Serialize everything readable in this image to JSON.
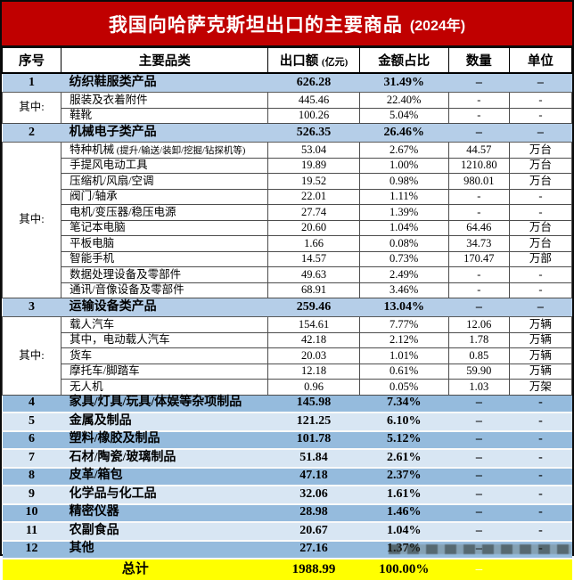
{
  "title": {
    "text": "我国向哈萨克斯坦出口的主要商品",
    "year": "(2024年)"
  },
  "colors": {
    "banner_bg": "#c00000",
    "banner_text": "#ffffff",
    "category_row_bg": "#b5cee8",
    "alt_row_dark_bg": "#95bbdd",
    "alt_row_light_bg": "#d8e6f3",
    "total_row_bg": "#ffff00",
    "grid_line": "#4d4d4d"
  },
  "side_label": "其中:",
  "chart_data": {
    "type": "table",
    "title": "我国向哈萨克斯坦出口的主要商品 (2024年)",
    "columns": {
      "no": "序号",
      "category": "主要品类",
      "export": "出口额",
      "export_note": "(亿元)",
      "share": "金额占比",
      "qty": "数量",
      "unit": "单位"
    },
    "rows": [
      {
        "kind": "cat",
        "no": "1",
        "category": "纺织鞋服类产品",
        "export": "626.28",
        "share": "31.49%",
        "qty": "–",
        "unit": "–"
      },
      {
        "kind": "sub",
        "side": {
          "label": "其中:",
          "span": 2
        },
        "category": "服装及衣着附件",
        "export": "445.46",
        "share": "22.40%",
        "qty": "-",
        "unit": "-"
      },
      {
        "kind": "sub",
        "category": "鞋靴",
        "export": "100.26",
        "share": "5.04%",
        "qty": "-",
        "unit": "-"
      },
      {
        "kind": "cat",
        "no": "2",
        "category": "机械电子类产品",
        "export": "526.35",
        "share": "26.46%",
        "qty": "–",
        "unit": "–"
      },
      {
        "kind": "sub",
        "side": {
          "label": "其中:",
          "span": 10
        },
        "category": "特种机械",
        "category_note": "(提升/输送/装卸/挖掘/钻探机等)",
        "export": "53.04",
        "share": "2.67%",
        "qty": "44.57",
        "unit": "万台"
      },
      {
        "kind": "sub",
        "category": "手提风电动工具",
        "export": "19.89",
        "share": "1.00%",
        "qty": "1210.80",
        "unit": "万台"
      },
      {
        "kind": "sub",
        "category": "压缩机/风扇/空调",
        "export": "19.52",
        "share": "0.98%",
        "qty": "980.01",
        "unit": "万台"
      },
      {
        "kind": "sub",
        "category": "阀门/轴承",
        "export": "22.01",
        "share": "1.11%",
        "qty": "-",
        "unit": "-"
      },
      {
        "kind": "sub",
        "category": "电机/变压器/稳压电源",
        "export": "27.74",
        "share": "1.39%",
        "qty": "-",
        "unit": "-"
      },
      {
        "kind": "sub",
        "category": "笔记本电脑",
        "export": "20.60",
        "share": "1.04%",
        "qty": "64.46",
        "unit": "万台"
      },
      {
        "kind": "sub",
        "category": "平板电脑",
        "export": "1.66",
        "share": "0.08%",
        "qty": "34.73",
        "unit": "万台"
      },
      {
        "kind": "sub",
        "category": "智能手机",
        "export": "14.57",
        "share": "0.73%",
        "qty": "170.47",
        "unit": "万部"
      },
      {
        "kind": "sub",
        "category": "数据处理设备及零部件",
        "export": "49.63",
        "share": "2.49%",
        "qty": "-",
        "unit": "-"
      },
      {
        "kind": "sub",
        "category": "通讯/音像设备及零部件",
        "export": "68.91",
        "share": "3.46%",
        "qty": "-",
        "unit": "-"
      },
      {
        "kind": "cat",
        "no": "3",
        "category": "运输设备类产品",
        "export": "259.46",
        "share": "13.04%",
        "qty": "–",
        "unit": "–"
      },
      {
        "kind": "sub",
        "side": {
          "label": "其中:",
          "span": 5
        },
        "category": "载人汽车",
        "export": "154.61",
        "share": "7.77%",
        "qty": "12.06",
        "unit": "万辆"
      },
      {
        "kind": "sub",
        "category": "其中，电动载人汽车",
        "export": "42.18",
        "share": "2.12%",
        "qty": "1.78",
        "unit": "万辆"
      },
      {
        "kind": "sub",
        "category": "货车",
        "export": "20.03",
        "share": "1.01%",
        "qty": "0.85",
        "unit": "万辆"
      },
      {
        "kind": "sub",
        "category": "摩托车/脚踏车",
        "export": "12.18",
        "share": "0.61%",
        "qty": "59.90",
        "unit": "万辆"
      },
      {
        "kind": "sub",
        "category": "无人机",
        "export": "0.96",
        "share": "0.05%",
        "qty": "1.03",
        "unit": "万架"
      },
      {
        "kind": "alt-dark",
        "no": "4",
        "category": "家具/灯具/玩具/体娱等杂项制品",
        "export": "145.98",
        "share": "7.34%",
        "qty": "–",
        "unit": "-"
      },
      {
        "kind": "alt-light",
        "no": "5",
        "category": "金属及制品",
        "export": "121.25",
        "share": "6.10%",
        "qty": "–",
        "unit": "-"
      },
      {
        "kind": "alt-dark",
        "no": "6",
        "category": "塑料/橡胶及制品",
        "export": "101.78",
        "share": "5.12%",
        "qty": "–",
        "unit": "-"
      },
      {
        "kind": "alt-light",
        "no": "7",
        "category": "石材/陶瓷/玻璃制品",
        "export": "51.84",
        "share": "2.61%",
        "qty": "–",
        "unit": "-"
      },
      {
        "kind": "alt-dark",
        "no": "8",
        "category": "皮革/箱包",
        "export": "47.18",
        "share": "2.37%",
        "qty": "–",
        "unit": "-"
      },
      {
        "kind": "alt-light",
        "no": "9",
        "category": "化学品与化工品",
        "export": "32.06",
        "share": "1.61%",
        "qty": "–",
        "unit": "-"
      },
      {
        "kind": "alt-dark",
        "no": "10",
        "category": "精密仪器",
        "export": "28.98",
        "share": "1.46%",
        "qty": "–",
        "unit": "-"
      },
      {
        "kind": "alt-light",
        "no": "11",
        "category": "农副食品",
        "export": "20.67",
        "share": "1.04%",
        "qty": "–",
        "unit": "-"
      },
      {
        "kind": "alt-dark",
        "no": "12",
        "category": "其他",
        "export": "27.16",
        "share": "1.37%",
        "qty": "–",
        "unit": "-"
      }
    ],
    "total": {
      "label": "总计",
      "export": "1988.99",
      "share": "100.00%",
      "qty": "–",
      "unit": ""
    }
  }
}
